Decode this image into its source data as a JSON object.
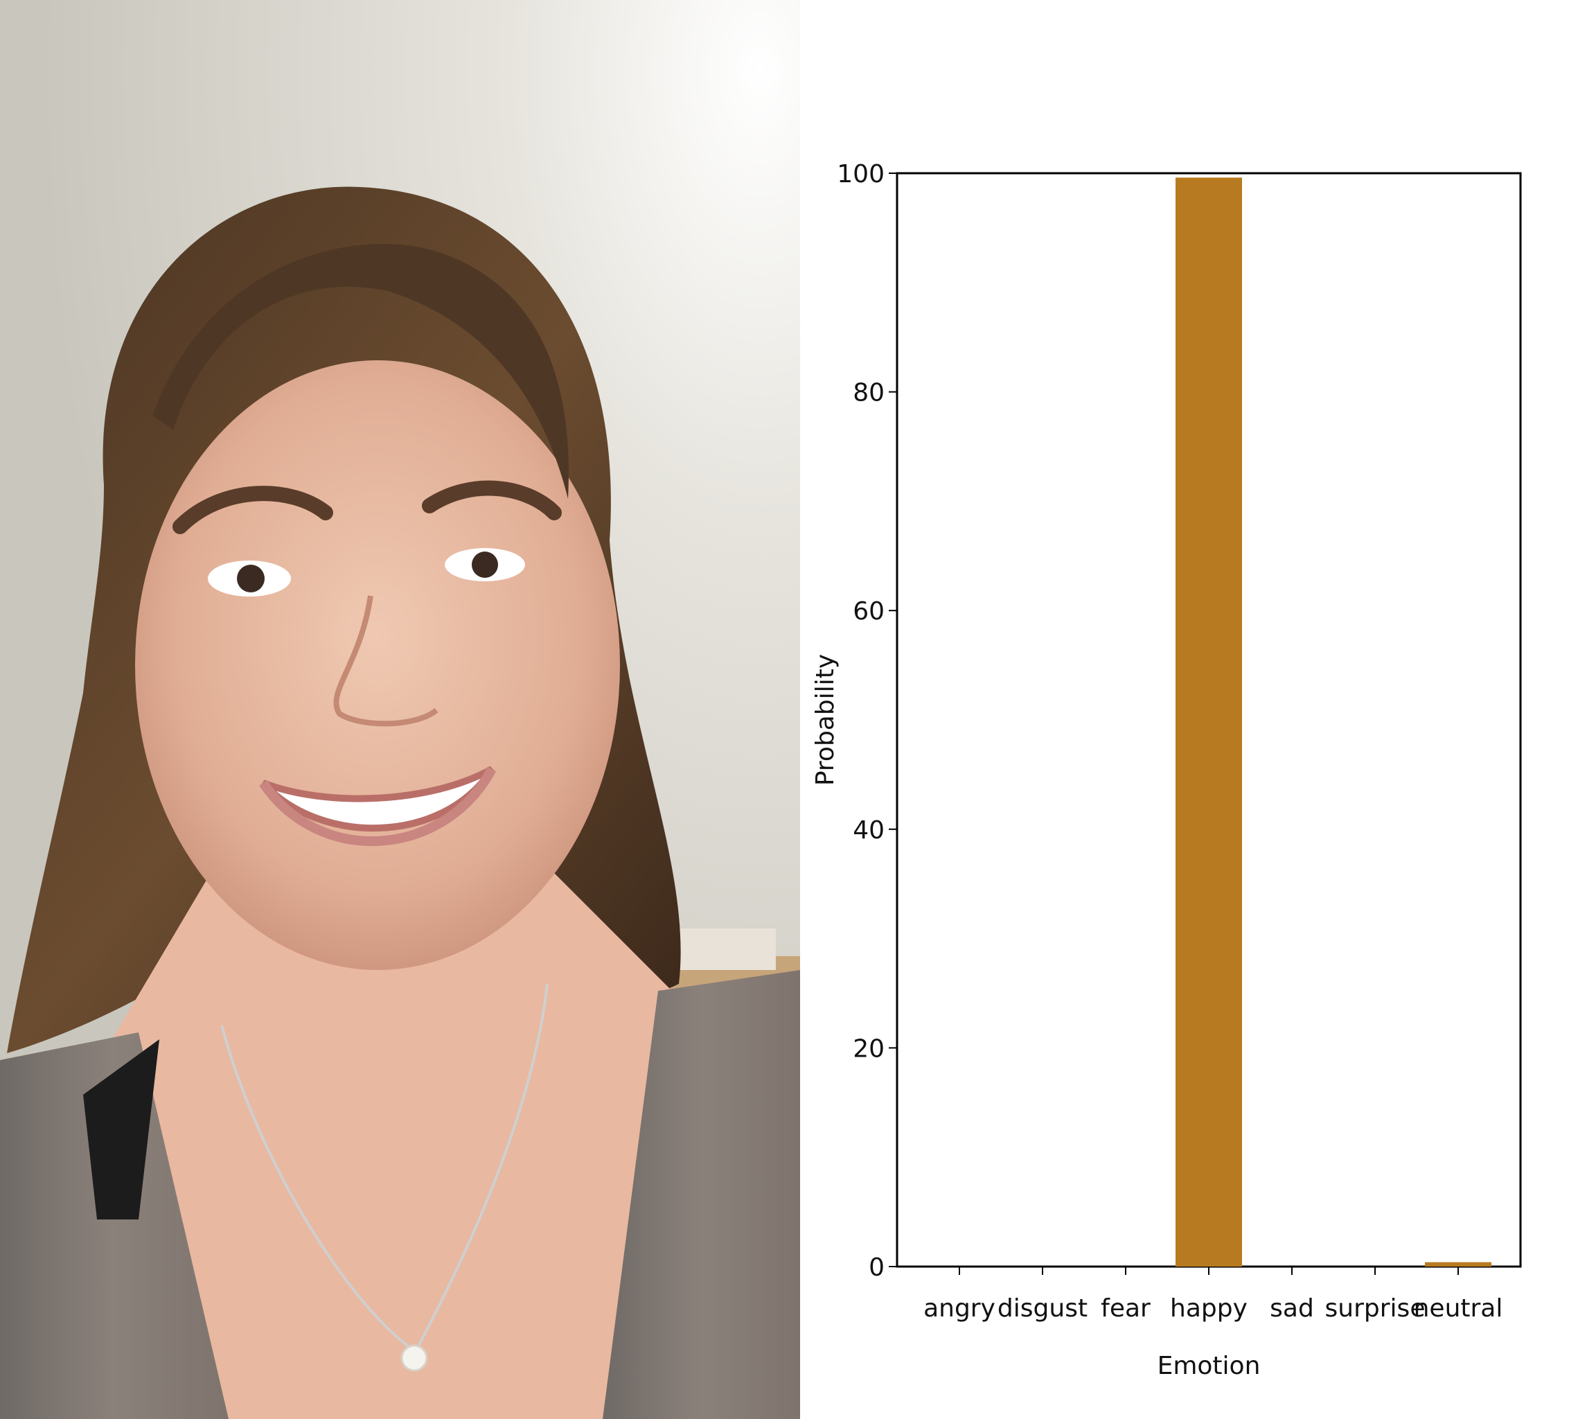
{
  "photo": {
    "description_icon": "portrait-photo"
  },
  "chart_data": {
    "type": "bar",
    "xlabel": "Emotion",
    "ylabel": "Probability",
    "categories": [
      "angry",
      "disgust",
      "fear",
      "happy",
      "sad",
      "surprise",
      "neutral"
    ],
    "values": [
      0,
      0,
      0,
      99.6,
      0,
      0,
      0.4
    ],
    "ylim": [
      0,
      100
    ],
    "yticks": [
      0,
      20,
      40,
      60,
      80,
      100
    ],
    "bar_color": "#B87A20",
    "grid": false,
    "legend": "none"
  }
}
